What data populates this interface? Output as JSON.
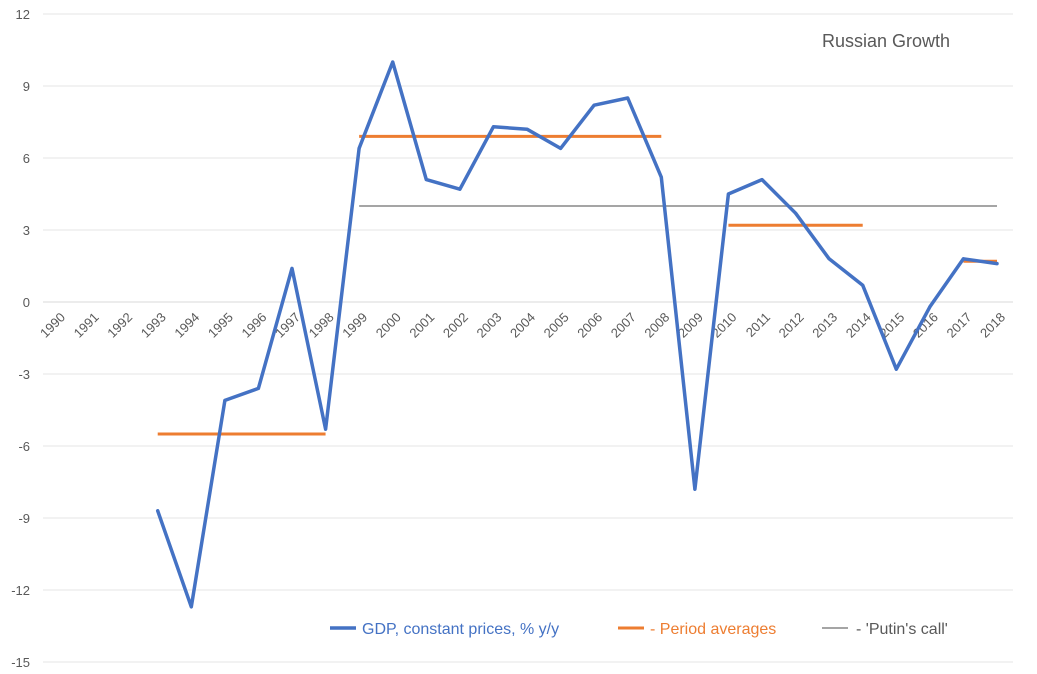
{
  "chart_data": {
    "type": "line",
    "title": "Russian Growth",
    "xlabel": "",
    "ylabel": "",
    "ylim": [
      -15,
      12
    ],
    "yticks": [
      12,
      9,
      6,
      3,
      0,
      -3,
      -6,
      -9,
      -12,
      -15
    ],
    "grid": true,
    "legend_position": "bottom",
    "categories": [
      "1990",
      "1991",
      "1992",
      "1993",
      "1994",
      "1995",
      "1996",
      "1997",
      "1998",
      "1999",
      "2000",
      "2001",
      "2002",
      "2003",
      "2004",
      "2005",
      "2006",
      "2007",
      "2008",
      "2009",
      "2010",
      "2011",
      "2012",
      "2013",
      "2014",
      "2015",
      "2016",
      "2017",
      "2018"
    ],
    "series": [
      {
        "name": "GDP, constant prices, % y/y",
        "color": "#4472C4",
        "values": [
          null,
          null,
          null,
          -8.7,
          -12.7,
          -4.1,
          -3.6,
          1.4,
          -5.3,
          6.4,
          10.0,
          5.1,
          4.7,
          7.3,
          7.2,
          6.4,
          8.2,
          8.5,
          5.2,
          -7.8,
          4.5,
          5.1,
          3.7,
          1.8,
          0.7,
          -2.8,
          -0.2,
          1.8,
          1.6
        ]
      },
      {
        "name": "- Period averages",
        "color": "#ED7D31",
        "segments": [
          {
            "from": "1993",
            "to": "1998",
            "value": -5.5
          },
          {
            "from": "1999",
            "to": "2008",
            "value": 6.9
          },
          {
            "from": "2010",
            "to": "2014",
            "value": 3.2
          },
          {
            "from": "2017",
            "to": "2018",
            "value": 1.7
          }
        ]
      },
      {
        "name": "- 'Putin's call'",
        "color": "#A5A5A5",
        "segments": [
          {
            "from": "1999",
            "to": "2018",
            "value": 4.0
          }
        ]
      }
    ]
  }
}
